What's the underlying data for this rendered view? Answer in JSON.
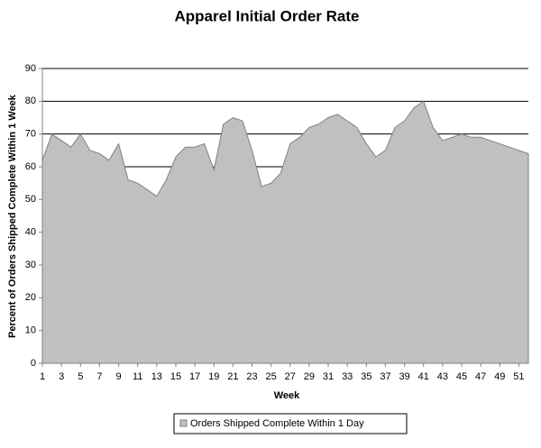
{
  "chart_data": {
    "type": "area",
    "title": "Apparel Initial Order Rate",
    "x_label": "Week",
    "y_label": "Percent of Orders Shipped Complete Within 1 Week",
    "x": [
      1,
      2,
      3,
      4,
      5,
      6,
      7,
      8,
      9,
      10,
      11,
      12,
      13,
      14,
      15,
      16,
      17,
      18,
      19,
      20,
      21,
      22,
      23,
      24,
      25,
      26,
      27,
      28,
      29,
      30,
      31,
      32,
      33,
      34,
      35,
      36,
      37,
      38,
      39,
      40,
      41,
      42,
      43,
      44,
      45,
      46,
      47,
      48,
      49,
      50,
      51,
      52
    ],
    "series": [
      {
        "name": "Orders Shipped Complete Within 1 Day",
        "color": "#c0c0c0",
        "values": [
          62,
          70,
          68,
          66,
          70,
          65,
          64,
          62,
          67,
          56,
          55,
          53,
          51,
          56,
          63,
          66,
          66,
          67,
          59,
          73,
          75,
          74,
          65,
          54,
          55,
          58,
          67,
          69,
          72,
          73,
          75,
          76,
          74,
          72,
          67,
          63,
          65,
          72,
          74,
          78,
          80,
          72,
          68,
          69,
          70,
          69,
          69,
          68,
          67,
          66,
          65,
          64
        ]
      }
    ],
    "xlim": [
      1,
      52
    ],
    "xticks": [
      1,
      3,
      5,
      7,
      9,
      11,
      13,
      15,
      17,
      19,
      21,
      23,
      25,
      27,
      29,
      31,
      33,
      35,
      37,
      39,
      41,
      43,
      45,
      47,
      49,
      51
    ],
    "ylim": [
      0,
      90
    ],
    "yticks": [
      0,
      10,
      20,
      30,
      40,
      50,
      60,
      70,
      80,
      90
    ],
    "grid": true,
    "legend": "bottom"
  }
}
